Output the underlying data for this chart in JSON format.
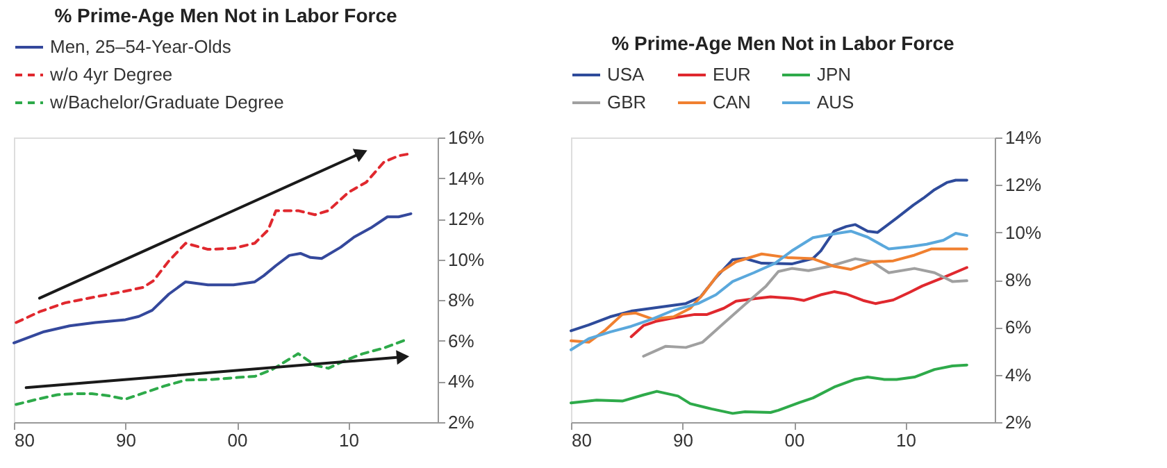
{
  "chart_data": [
    {
      "type": "line",
      "title": "% Prime-Age Men Not in Labor Force",
      "legend": "top left",
      "grid": false,
      "xlim": [
        1980,
        2018
      ],
      "xticks": [
        {
          "value": 1980,
          "label": "80"
        },
        {
          "value": 1990,
          "label": "90"
        },
        {
          "value": 2000,
          "label": "00"
        },
        {
          "value": 2010,
          "label": "10"
        }
      ],
      "ylim": [
        2,
        16
      ],
      "yticks": [
        {
          "value": 2,
          "label": "2%"
        },
        {
          "value": 4,
          "label": "4%"
        },
        {
          "value": 6,
          "label": "6%"
        },
        {
          "value": 8,
          "label": "8%"
        },
        {
          "value": 10,
          "label": "10%"
        },
        {
          "value": 12,
          "label": "12%"
        },
        {
          "value": 14,
          "label": "14%"
        },
        {
          "value": 16,
          "label": "16%"
        }
      ],
      "series": [
        {
          "name": "Men, 25–54-Year-Olds",
          "color": "#34489c",
          "line_style": "solid",
          "x": [
            1980,
            1982.7,
            1985,
            1987.3,
            1990,
            1991.2,
            1992.4,
            1993.9,
            1995.4,
            1997.4,
            1999.7,
            2001.6,
            2002.4,
            2003.5,
            2004.7,
            2005.7,
            2006.6,
            2007.6,
            2009.3,
            2010.5,
            2012,
            2013.5,
            2014.5,
            2015.6
          ],
          "values": [
            5.9,
            6.45,
            6.74,
            6.9,
            7.04,
            7.2,
            7.5,
            8.3,
            8.9,
            8.75,
            8.75,
            8.9,
            9.2,
            9.7,
            10.2,
            10.3,
            10.1,
            10.05,
            10.6,
            11.1,
            11.55,
            12.1,
            12.1,
            12.25
          ]
        },
        {
          "name": "w/o 4yr Degree",
          "color": "#e0282e",
          "line_style": "dashed",
          "x": [
            1980.2,
            1982.3,
            1984.6,
            1987,
            1989.6,
            1991.6,
            1992.5,
            1993.9,
            1995.4,
            1997.4,
            1999.7,
            2001.6,
            2002.8,
            2003.5,
            2005.5,
            2007,
            2008.2,
            2010,
            2011.6,
            2013.2,
            2014.5,
            2015.5
          ],
          "values": [
            6.9,
            7.43,
            7.87,
            8.13,
            8.4,
            8.63,
            8.95,
            9.93,
            10.8,
            10.5,
            10.55,
            10.8,
            11.45,
            12.4,
            12.4,
            12.2,
            12.4,
            13.3,
            13.8,
            14.8,
            15.1,
            15.2
          ]
        },
        {
          "name": "w/Bachelor/Graduate Degree",
          "color": "#2eaa4a",
          "line_style": "dashed",
          "x": [
            1980.2,
            1981.9,
            1983.9,
            1985.4,
            1987,
            1988.5,
            1990,
            1992,
            1993.5,
            1995.4,
            1997.8,
            2000.1,
            2001.6,
            2003.2,
            2005.5,
            2007,
            2008.2,
            2009.7,
            2011.3,
            2013.2,
            2015
          ],
          "values": [
            2.87,
            3.1,
            3.35,
            3.4,
            3.4,
            3.3,
            3.13,
            3.5,
            3.78,
            4.07,
            4.1,
            4.2,
            4.25,
            4.6,
            5.37,
            4.8,
            4.65,
            5.04,
            5.37,
            5.65,
            6.02
          ]
        },
        {
          "type": "line",
          "color": "#1a1a1a",
          "line_style": "solid",
          "x": [
            1982.3,
            2011
          ],
          "values": [
            8.1,
            15.2
          ]
        },
        {
          "type": "line",
          "color": "#1a1a1a",
          "line_style": "solid",
          "x": [
            1981.1,
            2014.7
          ],
          "values": [
            3.7,
            5.2
          ]
        }
      ]
    },
    {
      "type": "line",
      "title": "% Prime-Age Men Not in Labor Force",
      "legend": "top",
      "grid": false,
      "xlim": [
        1980,
        2018
      ],
      "xticks": [
        {
          "value": 1980,
          "label": "80"
        },
        {
          "value": 1990,
          "label": "90"
        },
        {
          "value": 2000,
          "label": "00"
        },
        {
          "value": 2010,
          "label": "10"
        }
      ],
      "ylim": [
        2,
        14
      ],
      "yticks": [
        {
          "value": 2,
          "label": "2%"
        },
        {
          "value": 4,
          "label": "4%"
        },
        {
          "value": 6,
          "label": "6%"
        },
        {
          "value": 8,
          "label": "8%"
        },
        {
          "value": 10,
          "label": "10%"
        },
        {
          "value": 12,
          "label": "12%"
        },
        {
          "value": 14,
          "label": "14%"
        }
      ],
      "series": [
        {
          "name": "USA",
          "color": "#2e4b9b",
          "line_style": "solid",
          "x": [
            1980,
            1981.6,
            1983.5,
            1985.4,
            1988,
            1990.3,
            1991.6,
            1993,
            1994.5,
            1995.6,
            1997.1,
            1999.8,
            2001.7,
            2002.4,
            2003.6,
            2004.7,
            2005.5,
            2006.6,
            2007.5,
            2009.2,
            2010.7,
            2011.6,
            2012.6,
            2013.7,
            2014.5,
            2015.5
          ],
          "values": [
            5.85,
            6.1,
            6.44,
            6.68,
            6.85,
            7.0,
            7.27,
            8.1,
            8.85,
            8.9,
            8.7,
            8.67,
            8.9,
            9.22,
            10.05,
            10.25,
            10.33,
            10.05,
            10.0,
            10.6,
            11.15,
            11.44,
            11.8,
            12.1,
            12.2,
            12.2
          ]
        },
        {
          "name": "EUR",
          "color": "#e0282e",
          "line_style": "solid",
          "x": [
            1985.4,
            1986.5,
            1987.7,
            1989.2,
            1991.1,
            1992.2,
            1993.7,
            1994.8,
            1996.4,
            1997.9,
            1999.8,
            2000.9,
            2002.4,
            2003.6,
            2004.7,
            2006.2,
            2007.3,
            2008.9,
            2010.4,
            2011.5,
            2013.4,
            2015.5
          ],
          "values": [
            5.6,
            6.07,
            6.26,
            6.4,
            6.54,
            6.54,
            6.8,
            7.1,
            7.2,
            7.28,
            7.22,
            7.13,
            7.37,
            7.5,
            7.4,
            7.13,
            7.0,
            7.15,
            7.48,
            7.74,
            8.1,
            8.52
          ]
        },
        {
          "name": "JPN",
          "color": "#2eaa4a",
          "line_style": "solid",
          "x": [
            1980,
            1982.3,
            1984.6,
            1986.5,
            1987.7,
            1989.6,
            1990.7,
            1992.6,
            1994.5,
            1995.6,
            1997.9,
            1998.6,
            2000.5,
            2001.7,
            2003.6,
            2005.5,
            2006.6,
            2008.1,
            2009.2,
            2010.8,
            2012.6,
            2014.2,
            2015.5
          ],
          "values": [
            2.81,
            2.93,
            2.89,
            3.15,
            3.3,
            3.1,
            2.78,
            2.56,
            2.37,
            2.44,
            2.41,
            2.5,
            2.83,
            3.02,
            3.48,
            3.81,
            3.9,
            3.8,
            3.8,
            3.9,
            4.22,
            4.37,
            4.41
          ]
        },
        {
          "name": "GBR",
          "color": "#a0a0a0",
          "line_style": "solid",
          "x": [
            1986.5,
            1988.5,
            1990.3,
            1991.8,
            1993.7,
            1995.6,
            1997.5,
            1998.6,
            1999.8,
            2001.3,
            2003.2,
            2005.5,
            2007,
            2008.5,
            2010.8,
            2012.6,
            2014.2,
            2015.5
          ],
          "values": [
            4.78,
            5.2,
            5.15,
            5.37,
            6.17,
            6.96,
            7.74,
            8.35,
            8.48,
            8.39,
            8.57,
            8.89,
            8.76,
            8.3,
            8.48,
            8.3,
            7.93,
            7.96
          ]
        },
        {
          "name": "CAN",
          "color": "#f08030",
          "line_style": "solid",
          "x": [
            1980,
            1981.6,
            1983.1,
            1984.6,
            1985.8,
            1987.3,
            1989.2,
            1990.7,
            1991.8,
            1993.3,
            1994.8,
            1997.1,
            1999.4,
            2001.7,
            2003.6,
            2005.1,
            2007,
            2008.9,
            2010.8,
            2012.3,
            2015.5
          ],
          "values": [
            5.43,
            5.37,
            5.89,
            6.54,
            6.6,
            6.35,
            6.44,
            6.8,
            7.37,
            8.3,
            8.76,
            9.09,
            8.94,
            8.89,
            8.57,
            8.44,
            8.76,
            8.8,
            9.04,
            9.3,
            9.3
          ]
        },
        {
          "name": "AUS",
          "color": "#5aa8dc",
          "line_style": "solid",
          "x": [
            1980,
            1981.6,
            1983.5,
            1985.4,
            1987.3,
            1989.2,
            1991.4,
            1993,
            1994.5,
            1996.4,
            1998.3,
            1999.8,
            2001.7,
            2003.9,
            2005.1,
            2006.6,
            2008.5,
            2010.4,
            2011.9,
            2013.4,
            2014.5,
            2015.5
          ],
          "values": [
            5.05,
            5.52,
            5.8,
            6.04,
            6.35,
            6.72,
            7.0,
            7.37,
            7.93,
            8.3,
            8.7,
            9.22,
            9.78,
            9.96,
            10.05,
            9.8,
            9.3,
            9.4,
            9.5,
            9.67,
            9.96,
            9.87
          ]
        }
      ]
    }
  ]
}
